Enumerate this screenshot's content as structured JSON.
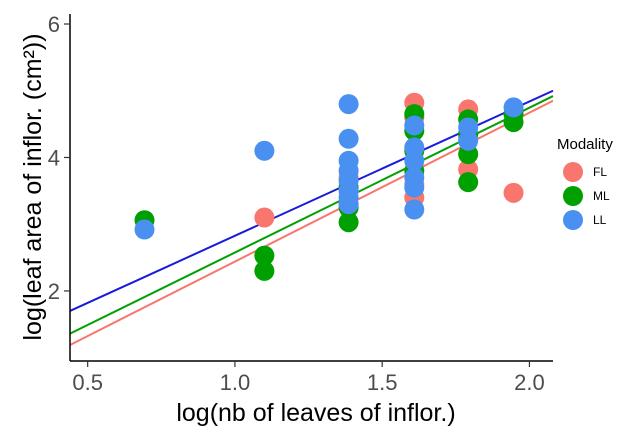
{
  "chart_data": {
    "type": "scatter",
    "xlabel": "log(nb of leaves of inflor.)",
    "ylabel": "log(leaf area of inflor. (cm²))",
    "xlim": [
      0.44,
      2.08
    ],
    "ylim": [
      0.95,
      6.15
    ],
    "x_ticks": [
      0.5,
      1.0,
      1.5,
      2.0
    ],
    "x_tick_labels": [
      "0.5",
      "1.0",
      "1.5",
      "2.0"
    ],
    "y_ticks": [
      2,
      4,
      6
    ],
    "y_tick_labels": [
      "2",
      "4",
      "6"
    ],
    "grid": false,
    "legend": {
      "title": "Modality",
      "position": "right",
      "entries": [
        "FL",
        "ML",
        "LL"
      ]
    },
    "series": [
      {
        "name": "FL",
        "color": "#f8766d",
        "points": [
          [
            1.1,
            3.1
          ],
          [
            1.386,
            3.3
          ],
          [
            1.386,
            3.7
          ],
          [
            1.609,
            4.82
          ],
          [
            1.609,
            4.6
          ],
          [
            1.609,
            3.4
          ],
          [
            1.609,
            3.6
          ],
          [
            1.792,
            4.72
          ],
          [
            1.792,
            3.82
          ],
          [
            1.792,
            4.3
          ],
          [
            1.946,
            3.47
          ]
        ],
        "trend": [
          [
            0.44,
            1.19
          ],
          [
            2.08,
            4.85
          ]
        ]
      },
      {
        "name": "ML",
        "color": "#00a000",
        "points": [
          [
            0.693,
            3.06
          ],
          [
            1.1,
            2.53
          ],
          [
            1.1,
            2.3
          ],
          [
            1.386,
            3.03
          ],
          [
            1.386,
            3.25
          ],
          [
            1.386,
            3.55
          ],
          [
            1.609,
            4.65
          ],
          [
            1.609,
            4.4
          ],
          [
            1.609,
            4.1
          ],
          [
            1.609,
            3.8
          ],
          [
            1.792,
            4.57
          ],
          [
            1.792,
            4.35
          ],
          [
            1.792,
            4.05
          ],
          [
            1.792,
            3.63
          ],
          [
            1.946,
            4.53
          ],
          [
            1.946,
            4.65
          ]
        ],
        "trend": [
          [
            0.44,
            1.36
          ],
          [
            2.08,
            4.92
          ]
        ]
      },
      {
        "name": "LL",
        "color": "#4a90f0",
        "points": [
          [
            0.693,
            2.92
          ],
          [
            1.1,
            4.1
          ],
          [
            1.386,
            4.8
          ],
          [
            1.386,
            4.28
          ],
          [
            1.386,
            3.95
          ],
          [
            1.386,
            3.8
          ],
          [
            1.386,
            3.65
          ],
          [
            1.386,
            3.5
          ],
          [
            1.386,
            3.4
          ],
          [
            1.386,
            3.3
          ],
          [
            1.609,
            4.48
          ],
          [
            1.609,
            4.15
          ],
          [
            1.609,
            3.95
          ],
          [
            1.609,
            3.7
          ],
          [
            1.609,
            3.55
          ],
          [
            1.609,
            3.22
          ],
          [
            1.792,
            4.45
          ],
          [
            1.792,
            4.25
          ],
          [
            1.946,
            4.75
          ]
        ],
        "trend": [
          [
            0.44,
            1.7
          ],
          [
            2.08,
            5.0
          ]
        ]
      }
    ]
  }
}
